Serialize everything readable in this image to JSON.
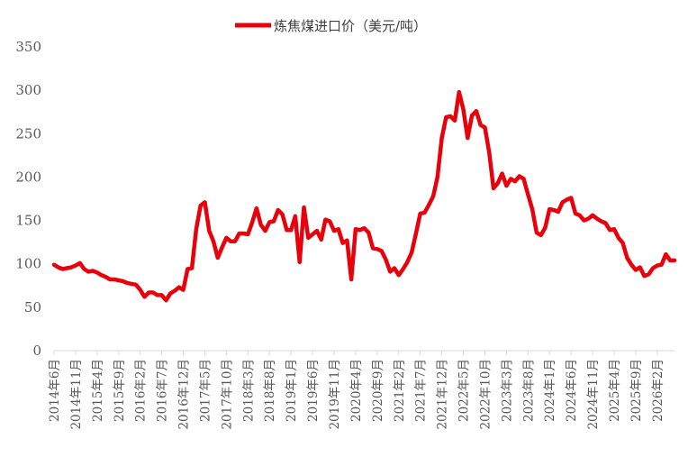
{
  "chart_data": {
    "type": "line",
    "title": "",
    "xlabel": "",
    "ylabel": "",
    "ylim": [
      0,
      350
    ],
    "yticks": [
      0,
      50,
      100,
      150,
      200,
      250,
      300,
      350
    ],
    "grid": false,
    "legend_position": "top",
    "series": [
      {
        "name": "炼焦煤进口价（美元/吨）",
        "color": "#E8000B",
        "start": "2014-06",
        "frequency": "monthly",
        "values": [
          99,
          96,
          94,
          95,
          96,
          98,
          101,
          94,
          91,
          92,
          90,
          87,
          85,
          82,
          82,
          81,
          80,
          78,
          77,
          76,
          70,
          62,
          67,
          67,
          64,
          64,
          58,
          66,
          69,
          73,
          70,
          94,
          95,
          140,
          167,
          171,
          138,
          126,
          107,
          119,
          130,
          126,
          126,
          135,
          135,
          134,
          148,
          164,
          145,
          138,
          148,
          149,
          162,
          157,
          139,
          139,
          155,
          102,
          165,
          130,
          134,
          138,
          128,
          151,
          149,
          138,
          140,
          124,
          127,
          82,
          140,
          139,
          141,
          136,
          118,
          117,
          115,
          105,
          91,
          95,
          87,
          94,
          102,
          113,
          135,
          158,
          159,
          168,
          178,
          200,
          245,
          269,
          270,
          265,
          298,
          278,
          245,
          271,
          276,
          260,
          257,
          228,
          187,
          193,
          204,
          190,
          198,
          195,
          201,
          198,
          180,
          163,
          136,
          133,
          142,
          163,
          162,
          160,
          171,
          174,
          176,
          158,
          156,
          150,
          152,
          156,
          152,
          149,
          147,
          139,
          140,
          130,
          124,
          107,
          99,
          93,
          96,
          86,
          88,
          95,
          98,
          99,
          111,
          104,
          104
        ]
      }
    ],
    "x_tick_labels": [
      "2014年6月",
      "2014年11月",
      "2015年4月",
      "2015年9月",
      "2016年2月",
      "2016年7月",
      "2016年12月",
      "2017年5月",
      "2017年10月",
      "2018年3月",
      "2018年8月",
      "2019年1月",
      "2019年6月",
      "2019年11月",
      "2020年4月",
      "2020年9月",
      "2021年2月",
      "2021年7月",
      "2021年12月",
      "2022年5月",
      "2022年10月",
      "2023年3月",
      "2023年8月",
      "2024年1月",
      "2024年6月",
      "2024年11月",
      "2025年4月",
      "2025年9月",
      "2026年2月"
    ]
  },
  "legend": {
    "label": "炼焦煤进口价（美元/吨）"
  },
  "y_axis": {
    "labels": [
      "0",
      "50",
      "100",
      "150",
      "200",
      "250",
      "300",
      "350"
    ]
  }
}
